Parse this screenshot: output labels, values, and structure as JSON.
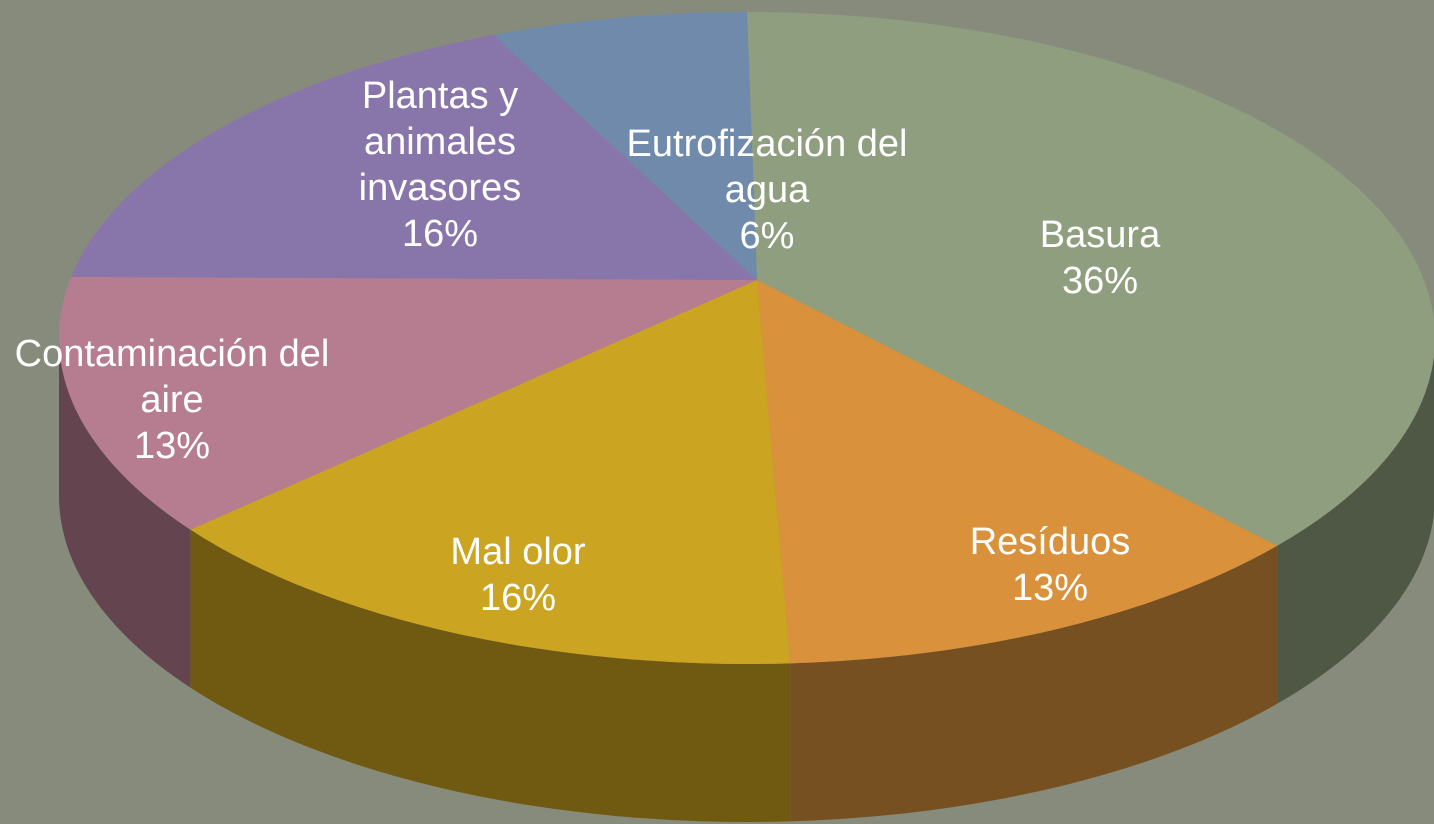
{
  "chart_data": {
    "type": "pie",
    "categories": [
      "Basura",
      "Resíduos",
      "Mal olor",
      "Contaminación del aire",
      "Plantas y animales invasores",
      "Eutrofización del agua"
    ],
    "values": [
      36,
      13,
      16,
      13,
      16,
      6
    ],
    "value_labels": [
      "36%",
      "13%",
      "16%",
      "13%",
      "16%",
      "6%"
    ],
    "colors": [
      "#8f9e7e",
      "#d9913c",
      "#cba421",
      "#b57d8f",
      "#8876ab",
      "#6f8aaa"
    ]
  }
}
